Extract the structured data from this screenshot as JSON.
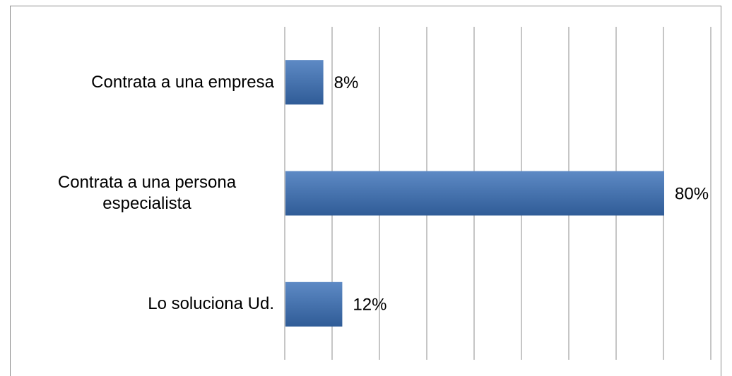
{
  "chart_data": {
    "type": "hbar",
    "categories": [
      "Contrata a una empresa",
      "Contrata a una persona especialista",
      "Lo soluciona Ud."
    ],
    "values": [
      8,
      80,
      12
    ],
    "value_labels": [
      "8%",
      "80%",
      "12%"
    ],
    "color": "#3a70b8",
    "xlim": [
      0,
      90
    ],
    "xticks": [
      0,
      10,
      20,
      30,
      40,
      50,
      60,
      70,
      80,
      90
    ],
    "grid": true
  }
}
